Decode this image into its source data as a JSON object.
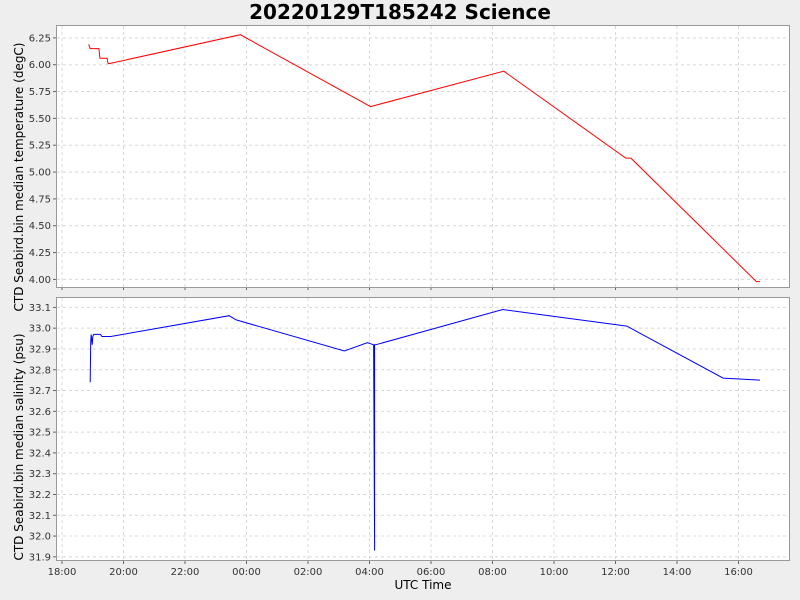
{
  "chart_data": [
    {
      "type": "line",
      "title": "20220129T185242 Science",
      "xlabel": "UTC Time",
      "ylabel": "CTD Seabird.bin median temperature (degC)",
      "grid": true,
      "xlim": [
        "18:00",
        "17:50"
      ],
      "ylim": [
        3.92,
        6.37
      ],
      "yticks": [
        "4.00",
        "4.25",
        "4.50",
        "4.75",
        "5.00",
        "5.25",
        "5.50",
        "5.75",
        "6.00",
        "6.25"
      ],
      "series": [
        {
          "color": "#ff0000",
          "x": [
            "18:52",
            "18:55",
            "19:12",
            "19:14",
            "19:28",
            "19:30",
            "19:32",
            "23:48",
            "04:02",
            "08:22",
            "12:20",
            "12:30",
            "16:35",
            "16:42"
          ],
          "y": [
            6.19,
            6.15,
            6.15,
            6.06,
            6.06,
            6.01,
            6.01,
            6.28,
            5.61,
            5.94,
            5.13,
            5.13,
            3.98,
            3.98
          ]
        }
      ]
    },
    {
      "type": "line",
      "xlabel": "UTC Time",
      "ylabel": "CTD Seabird.bin median salinity (psu)",
      "grid": true,
      "xlim": [
        "18:00",
        "17:50"
      ],
      "ylim": [
        31.88,
        33.15
      ],
      "yticks": [
        "31.9",
        "32.0",
        "32.1",
        "32.2",
        "32.3",
        "32.4",
        "32.5",
        "32.6",
        "32.7",
        "32.8",
        "32.9",
        "33.0",
        "33.1"
      ],
      "xticks": [
        "18:00",
        "20:00",
        "22:00",
        "00:00",
        "02:00",
        "04:00",
        "06:00",
        "08:00",
        "10:00",
        "12:00",
        "14:00",
        "16:00"
      ],
      "series": [
        {
          "color": "#0000ff",
          "x": [
            "18:55",
            "18:56",
            "18:57",
            "18:59",
            "19:00",
            "19:02",
            "19:05",
            "19:15",
            "19:18",
            "19:30",
            "19:35",
            "23:26",
            "23:40",
            "03:11",
            "03:56",
            "04:08",
            "04:10",
            "04:10",
            "04:12",
            "08:20",
            "12:22",
            "15:30",
            "16:42"
          ],
          "y": [
            32.74,
            32.93,
            32.97,
            32.92,
            32.96,
            32.97,
            32.97,
            32.97,
            32.96,
            32.96,
            32.96,
            33.06,
            33.04,
            32.89,
            32.93,
            32.92,
            31.93,
            32.92,
            32.92,
            33.09,
            33.01,
            32.76,
            32.75
          ]
        }
      ]
    }
  ]
}
